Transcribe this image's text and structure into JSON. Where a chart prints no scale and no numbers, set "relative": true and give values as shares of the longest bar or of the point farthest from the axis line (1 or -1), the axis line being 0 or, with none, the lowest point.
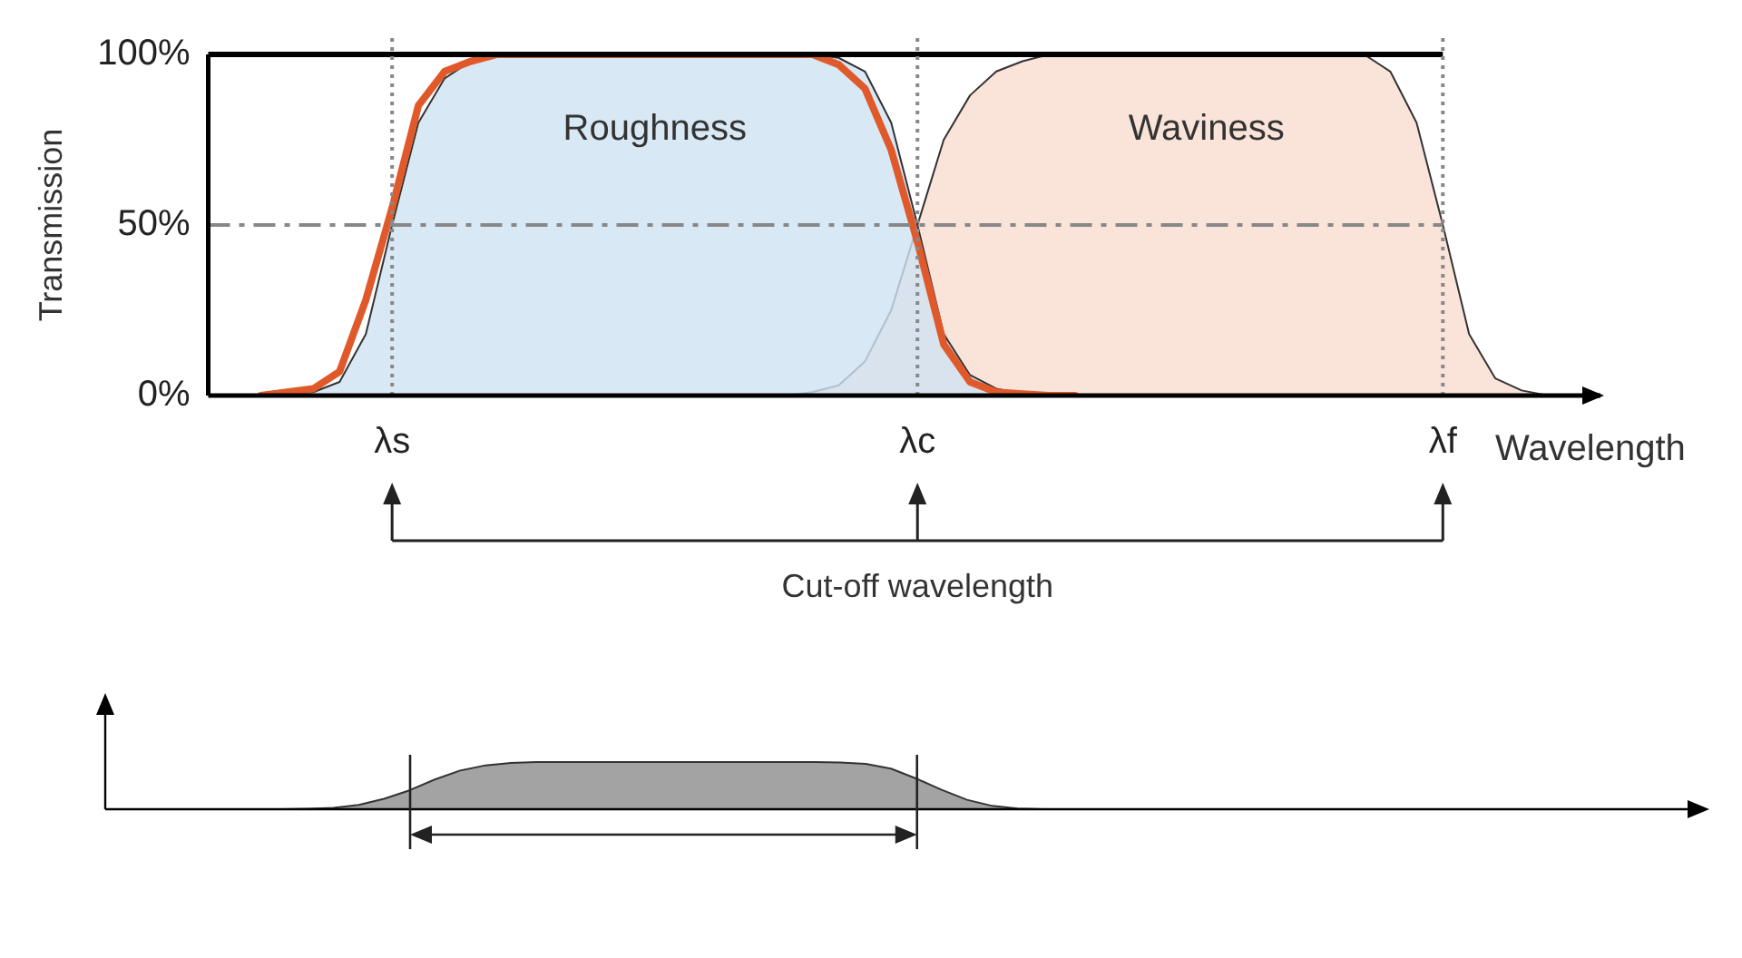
{
  "chart_data": [
    {
      "type": "area",
      "ylabel": "Transmission",
      "xlabel": "Wavelength",
      "categories": [
        null,
        null,
        null,
        null,
        null,
        null,
        null,
        "λs",
        null,
        null,
        null,
        null,
        null,
        null,
        null,
        null,
        null,
        null,
        null,
        null,
        null,
        null,
        null,
        null,
        null,
        null,
        null,
        "λc",
        null,
        null,
        null,
        null,
        null,
        null,
        null,
        null,
        null,
        null,
        null,
        null,
        null,
        null,
        null,
        null,
        null,
        null,
        null,
        "λf",
        null,
        null,
        null,
        null,
        null,
        null
      ],
      "ylim": [
        0,
        100
      ],
      "yticks": [
        {
          "value": 0,
          "label": "0%"
        },
        {
          "value": 50,
          "label": "50%"
        },
        {
          "value": 100,
          "label": "100%"
        }
      ],
      "grid": false,
      "legend": false,
      "marker": "none",
      "series": [
        {
          "name": "Roughness",
          "color": "#cfe2f3",
          "values": [
            null,
            null,
            0,
            0.5,
            1,
            4,
            18,
            50,
            80,
            93,
            98,
            100,
            100,
            100,
            100,
            100,
            100,
            100,
            100,
            100,
            100,
            100,
            100,
            100,
            99,
            95,
            80,
            50,
            18,
            6,
            2,
            0.5,
            0,
            null,
            null,
            null,
            null,
            null,
            null,
            null,
            null,
            null,
            null,
            null,
            null,
            null,
            null,
            null,
            null,
            null,
            null,
            null,
            null,
            null
          ]
        },
        {
          "name": "Waviness",
          "color": "#f9dccf",
          "values": [
            null,
            null,
            null,
            null,
            null,
            null,
            null,
            null,
            null,
            null,
            null,
            null,
            null,
            null,
            null,
            null,
            null,
            null,
            null,
            null,
            null,
            null,
            0,
            1,
            3,
            10,
            25,
            50,
            75,
            88,
            95,
            98,
            100,
            100,
            100,
            100,
            100,
            100,
            100,
            100,
            100,
            100,
            100,
            100,
            100,
            95,
            80,
            50,
            18,
            5,
            1.5,
            0,
            null,
            null
          ]
        },
        {
          "type": "line",
          "color": "#e0592a",
          "values": [
            null,
            null,
            0,
            1,
            2,
            7,
            28,
            55,
            85,
            95,
            98,
            100,
            100,
            100,
            100,
            100,
            100,
            100,
            100,
            100,
            100,
            100,
            100,
            100,
            97,
            90,
            72,
            45,
            15,
            4,
            1,
            0.5,
            0,
            0,
            null,
            null,
            null,
            null,
            null,
            null,
            null,
            null,
            null,
            null,
            null,
            null,
            null,
            null,
            null,
            null,
            null,
            null,
            null,
            null
          ]
        }
      ],
      "ref_lines": [
        {
          "axis": "y",
          "value": 50,
          "color": "#888888",
          "line_style": "dashed"
        },
        {
          "axis": "y",
          "value": 100,
          "color": "#000000",
          "line_style": "solid"
        },
        {
          "axis": "x",
          "value": "λs",
          "color": "#888888",
          "line_style": "dotted"
        },
        {
          "axis": "x",
          "value": "λc",
          "color": "#888888",
          "line_style": "dotted"
        },
        {
          "axis": "x",
          "value": "λf",
          "color": "#888888",
          "line_style": "dotted"
        }
      ],
      "annotations": [
        "Cut-off wavelength"
      ]
    },
    {
      "type": "area",
      "relative": true,
      "grid": false,
      "legend": false,
      "marker": "none",
      "categories": [
        null,
        null,
        null,
        null,
        null,
        null,
        null,
        null,
        null,
        null,
        null,
        null,
        null,
        null,
        null,
        null,
        null,
        null,
        null,
        null,
        null,
        null,
        null,
        null,
        null,
        null,
        null,
        null,
        null,
        null,
        null,
        null,
        null,
        null,
        null,
        null,
        null,
        null,
        null,
        null,
        null,
        null,
        null,
        null,
        null,
        null,
        null,
        null,
        null,
        null,
        null,
        null,
        null,
        null,
        null,
        null,
        null,
        null,
        null,
        null,
        null,
        null,
        null,
        null
      ],
      "series": [
        {
          "color": "#8c8c8c",
          "values": [
            null,
            null,
            null,
            null,
            null,
            null,
            null,
            0,
            0.01,
            0.03,
            0.09,
            0.22,
            0.4,
            0.63,
            0.82,
            0.93,
            0.98,
            1,
            1,
            1,
            1,
            1,
            1,
            1,
            1,
            1,
            1,
            1,
            1,
            0.99,
            0.96,
            0.86,
            0.65,
            0.41,
            0.2,
            0.07,
            0.015,
            0,
            null,
            null,
            null,
            null,
            null,
            null,
            null,
            null,
            null,
            null,
            null,
            null,
            null,
            null,
            null,
            null,
            null,
            null,
            null,
            null,
            null,
            null,
            null,
            null,
            null,
            null
          ]
        }
      ]
    }
  ]
}
